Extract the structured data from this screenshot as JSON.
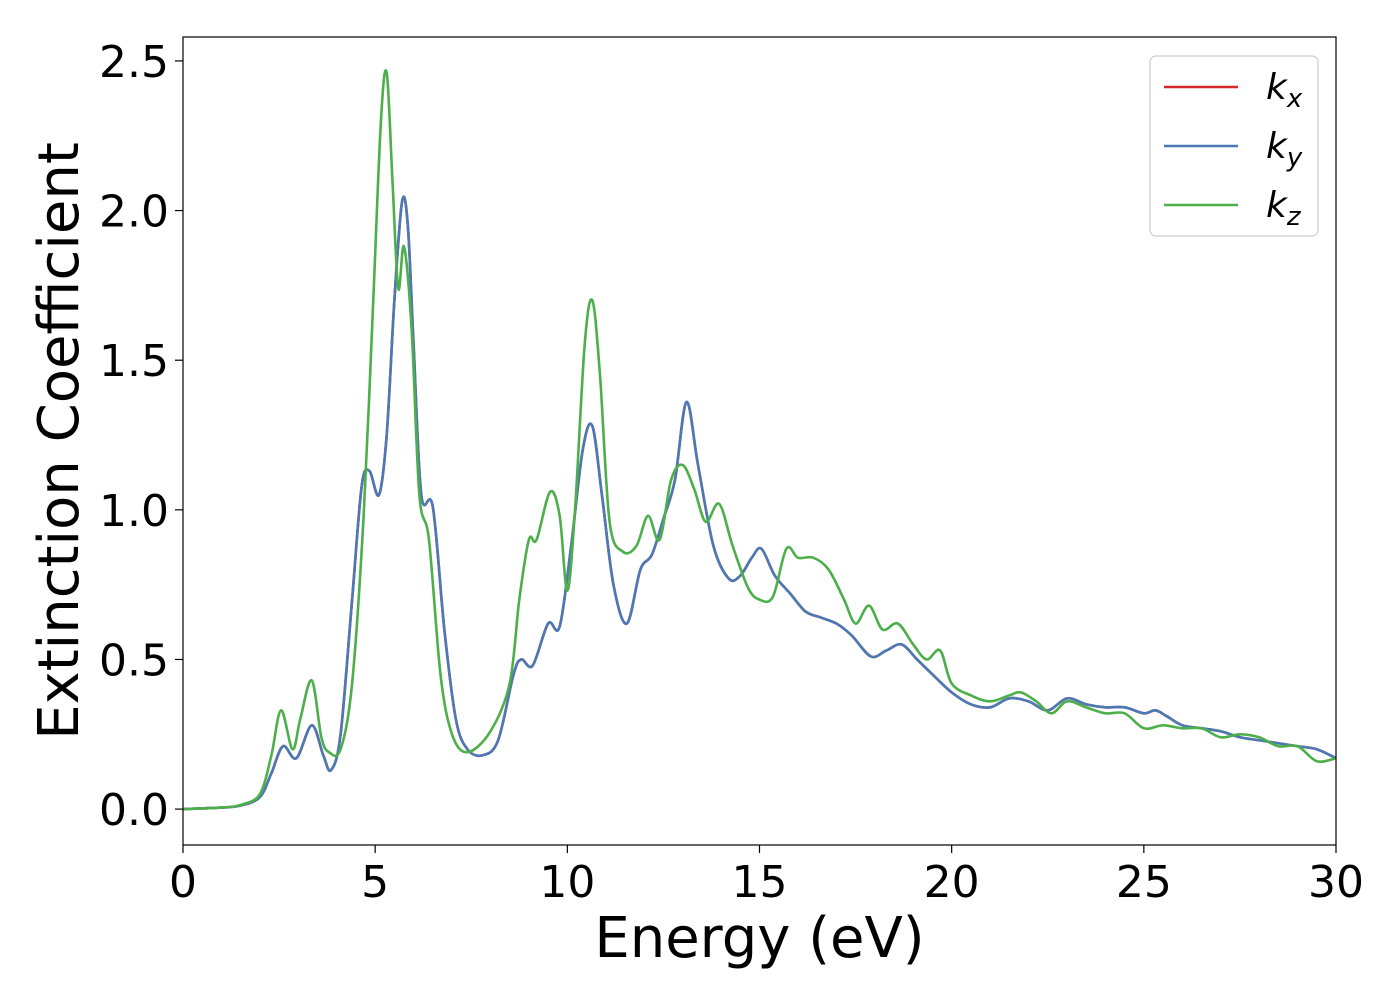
{
  "chart_data": {
    "type": "line",
    "xlabel": "Energy (eV)",
    "ylabel": "Extinction Coefficient",
    "xlim": [
      0,
      30
    ],
    "ylim": [
      -0.12,
      2.58
    ],
    "xticks": [
      0,
      5,
      10,
      15,
      20,
      25,
      30
    ],
    "yticks": [
      0.0,
      0.5,
      1.0,
      1.5,
      2.0,
      2.5
    ],
    "xtick_labels": [
      "0",
      "5",
      "10",
      "15",
      "20",
      "25",
      "30"
    ],
    "ytick_labels": [
      "0.0",
      "0.5",
      "1.0",
      "1.5",
      "2.0",
      "2.5"
    ],
    "grid": false,
    "legend_position": "top-right",
    "series": [
      {
        "name": "kx",
        "label_main": "k",
        "label_sub": "x",
        "color": "#d62728",
        "x": [
          0,
          1,
          1.5,
          2,
          2.3,
          2.6,
          2.95,
          3.35,
          3.65,
          3.85,
          4.1,
          4.4,
          4.65,
          4.85,
          5.1,
          5.3,
          5.5,
          5.7,
          5.85,
          6,
          6.2,
          6.5,
          6.8,
          7.1,
          7.4,
          7.8,
          8.2,
          8.6,
          8.8,
          9.1,
          9.5,
          9.8,
          10.1,
          10.4,
          10.65,
          10.9,
          11.2,
          11.55,
          11.9,
          12.2,
          12.5,
          12.8,
          13.1,
          13.4,
          13.8,
          14.2,
          14.5,
          14.8,
          15.05,
          15.4,
          15.8,
          16.2,
          16.6,
          17,
          17.4,
          17.9,
          18.3,
          18.7,
          19.1,
          19.5,
          20,
          20.5,
          21,
          21.5,
          22,
          22.5,
          23,
          23.5,
          24,
          24.5,
          25,
          25.3,
          25.6,
          26,
          26.5,
          27,
          27.5,
          28,
          28.5,
          29,
          29.5,
          30
        ],
        "y": [
          0,
          0.005,
          0.012,
          0.04,
          0.12,
          0.21,
          0.17,
          0.28,
          0.18,
          0.13,
          0.25,
          0.7,
          1.08,
          1.13,
          1.05,
          1.25,
          1.7,
          2.03,
          1.95,
          1.55,
          1.05,
          1.01,
          0.6,
          0.3,
          0.2,
          0.18,
          0.23,
          0.45,
          0.5,
          0.48,
          0.62,
          0.61,
          0.88,
          1.2,
          1.28,
          1.05,
          0.75,
          0.62,
          0.8,
          0.85,
          0.97,
          1.1,
          1.36,
          1.15,
          0.88,
          0.77,
          0.78,
          0.84,
          0.87,
          0.78,
          0.72,
          0.66,
          0.64,
          0.62,
          0.58,
          0.51,
          0.53,
          0.55,
          0.5,
          0.45,
          0.39,
          0.35,
          0.34,
          0.37,
          0.36,
          0.33,
          0.37,
          0.35,
          0.34,
          0.34,
          0.32,
          0.33,
          0.31,
          0.28,
          0.27,
          0.26,
          0.24,
          0.23,
          0.22,
          0.21,
          0.2,
          0.17
        ]
      },
      {
        "name": "ky",
        "label_main": "k",
        "label_sub": "y",
        "color": "#4a7ab5",
        "x": [
          0,
          1,
          1.5,
          2,
          2.3,
          2.6,
          2.95,
          3.35,
          3.65,
          3.85,
          4.1,
          4.4,
          4.65,
          4.85,
          5.1,
          5.3,
          5.5,
          5.7,
          5.85,
          6,
          6.2,
          6.5,
          6.8,
          7.1,
          7.4,
          7.8,
          8.2,
          8.6,
          8.8,
          9.1,
          9.5,
          9.8,
          10.1,
          10.4,
          10.65,
          10.9,
          11.2,
          11.55,
          11.9,
          12.2,
          12.5,
          12.8,
          13.1,
          13.4,
          13.8,
          14.2,
          14.5,
          14.8,
          15.05,
          15.4,
          15.8,
          16.2,
          16.6,
          17,
          17.4,
          17.9,
          18.3,
          18.7,
          19.1,
          19.5,
          20,
          20.5,
          21,
          21.5,
          22,
          22.5,
          23,
          23.5,
          24,
          24.5,
          25,
          25.3,
          25.6,
          26,
          26.5,
          27,
          27.5,
          28,
          28.5,
          29,
          29.5,
          30
        ],
        "y": [
          0,
          0.005,
          0.012,
          0.04,
          0.12,
          0.21,
          0.17,
          0.28,
          0.18,
          0.13,
          0.25,
          0.7,
          1.08,
          1.13,
          1.05,
          1.25,
          1.7,
          2.03,
          1.95,
          1.55,
          1.05,
          1.01,
          0.6,
          0.3,
          0.2,
          0.18,
          0.23,
          0.45,
          0.5,
          0.48,
          0.62,
          0.61,
          0.88,
          1.2,
          1.28,
          1.05,
          0.75,
          0.62,
          0.8,
          0.85,
          0.97,
          1.1,
          1.36,
          1.15,
          0.88,
          0.77,
          0.78,
          0.84,
          0.87,
          0.78,
          0.72,
          0.66,
          0.64,
          0.62,
          0.58,
          0.51,
          0.53,
          0.55,
          0.5,
          0.45,
          0.39,
          0.35,
          0.34,
          0.37,
          0.36,
          0.33,
          0.37,
          0.35,
          0.34,
          0.34,
          0.32,
          0.33,
          0.31,
          0.28,
          0.27,
          0.26,
          0.24,
          0.23,
          0.22,
          0.21,
          0.2,
          0.17
        ]
      },
      {
        "name": "kz",
        "label_main": "k",
        "label_sub": "z",
        "color": "#4daf4a",
        "x": [
          0,
          1,
          1.5,
          2,
          2.3,
          2.55,
          2.85,
          3.05,
          3.35,
          3.6,
          3.8,
          4.1,
          4.4,
          4.7,
          4.95,
          5.15,
          5.3,
          5.45,
          5.6,
          5.75,
          5.95,
          6.15,
          6.4,
          6.7,
          7,
          7.4,
          8,
          8.5,
          8.75,
          9,
          9.2,
          9.55,
          9.8,
          10,
          10.2,
          10.45,
          10.65,
          10.85,
          11.1,
          11.45,
          11.8,
          12.1,
          12.4,
          12.7,
          13,
          13.3,
          13.6,
          13.95,
          14.3,
          14.7,
          15,
          15.35,
          15.7,
          16,
          16.4,
          16.8,
          17.2,
          17.5,
          17.85,
          18.2,
          18.6,
          19,
          19.35,
          19.7,
          20,
          20.5,
          21,
          21.5,
          21.8,
          22.2,
          22.6,
          23,
          23.5,
          24,
          24.5,
          25,
          25.5,
          26,
          26.5,
          27,
          27.5,
          28,
          28.5,
          29,
          29.5,
          30
        ],
        "y": [
          0,
          0.005,
          0.014,
          0.05,
          0.18,
          0.33,
          0.2,
          0.3,
          0.43,
          0.24,
          0.19,
          0.2,
          0.42,
          0.98,
          1.7,
          2.3,
          2.46,
          2.1,
          1.74,
          1.88,
          1.6,
          1.05,
          0.9,
          0.45,
          0.25,
          0.19,
          0.26,
          0.42,
          0.7,
          0.9,
          0.9,
          1.06,
          0.98,
          0.73,
          1.0,
          1.55,
          1.7,
          1.45,
          0.96,
          0.86,
          0.88,
          0.98,
          0.9,
          1.1,
          1.15,
          1.07,
          0.96,
          1.02,
          0.88,
          0.74,
          0.7,
          0.71,
          0.87,
          0.84,
          0.84,
          0.8,
          0.7,
          0.62,
          0.68,
          0.6,
          0.62,
          0.55,
          0.5,
          0.53,
          0.42,
          0.38,
          0.36,
          0.38,
          0.39,
          0.36,
          0.32,
          0.36,
          0.34,
          0.32,
          0.32,
          0.27,
          0.28,
          0.27,
          0.27,
          0.24,
          0.25,
          0.24,
          0.21,
          0.21,
          0.16,
          0.17
        ]
      }
    ]
  }
}
